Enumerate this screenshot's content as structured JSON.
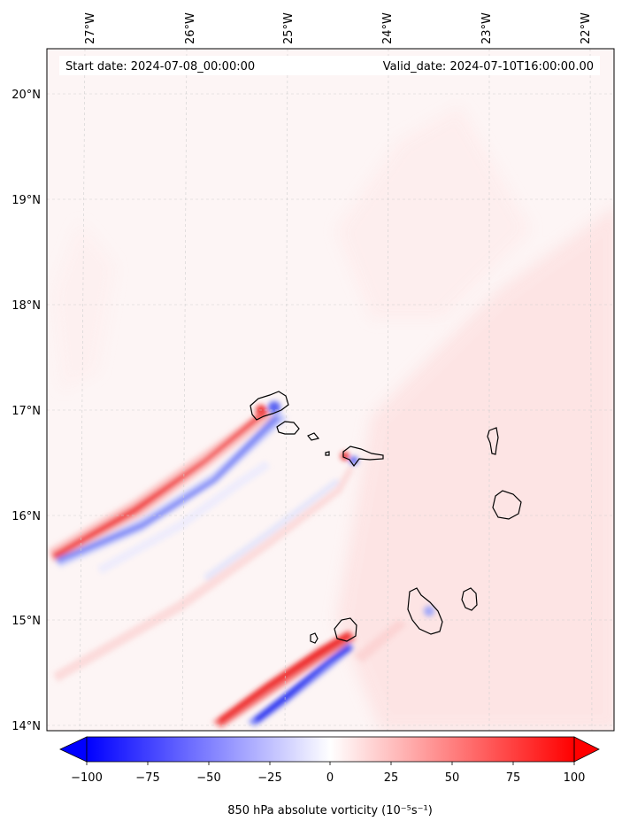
{
  "map": {
    "start_date_text": "Start date: 2024-07-08_00:00:00",
    "valid_date_text": "Valid_date: 2024-07-10T16:00:00.00",
    "lon_labels": [
      "27°W",
      "26°W",
      "25°W",
      "24°W",
      "23°W",
      "22°W"
    ],
    "lat_labels": [
      "20°N",
      "19°N",
      "18°N",
      "17°N",
      "16°N",
      "15°N",
      "14°N"
    ],
    "gridlines": true,
    "background_color": "#fdf5f5",
    "coastline_color": "#000000"
  },
  "colorbar": {
    "label": "850 hPa absolute vorticity (10⁻⁵s⁻¹)",
    "ticks": [
      "−100",
      "−75",
      "−50",
      "−25",
      "0",
      "25",
      "50",
      "75",
      "100"
    ],
    "range": [
      -100,
      100
    ],
    "colormap": "bwr",
    "extend": "both",
    "low_color": "#0000ff",
    "mid_color": "#ffffff",
    "high_color": "#ff0000"
  }
}
